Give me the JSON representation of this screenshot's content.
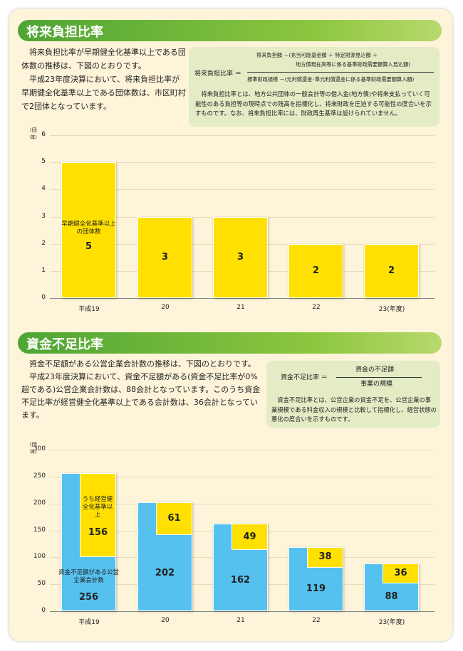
{
  "section1": {
    "title": "将来負担比率",
    "paragraphs": [
      "将来負担比率が早期健全化基準以上である団体数の推移は、下図のとおりです。",
      "平成23年度決算において、将来負担比率が早期健全化基準以上である団体数は、市区町村で2団体となっています。"
    ],
    "formula": {
      "lhs": "将来負担比率 ＝",
      "num1": "将来負担額 －(充当可能基金額 ＋ 特定財源見込額 ＋",
      "num2": "地方債現在高等に係る基準財政需要額算入見込額)",
      "den": "標準財政規模 －(元利償還金･準元利償還金に係る基準財政需要額算入額)"
    },
    "note": "将来負担比率とは、地方公共団体の一般会計等の借入金(地方債)や将来支払っていく可能性のある負担等の現時点での残高を指標化し、将来財政を圧迫する可能性の度合いを示すものです。なお、将来負担比率には、財政再生基準は設けられていません。"
  },
  "section2": {
    "title": "資金不足比率",
    "paragraphs": [
      "資金不足額がある公営企業会計数の推移は、下図のとおりです。",
      "平成23年度決算において、資金不足額がある(資金不足比率が0%超である)公営企業会計数は、88会計となっています。このうち資金不足比率が経営健全化基準以上である会計数は、36会計となっています。"
    ],
    "formula": {
      "lhs": "資金不足比率 ＝",
      "num": "資金の不足額",
      "den": "事業の規模"
    },
    "note": "資金不足比率とは、公営企業の資金不足を、公営企業の事業規模である料金収入の規模と比較して指標化し、経営状態の悪化の度合いを示すものです。"
  },
  "chart_data": [
    {
      "type": "bar",
      "ylabel": "(団体)",
      "ylim": [
        0,
        6
      ],
      "yticks": [
        "0",
        "1",
        "2",
        "3",
        "4",
        "5",
        "6"
      ],
      "categories": [
        "平成19",
        "20",
        "21",
        "22",
        "23(年度)"
      ],
      "values": [
        5,
        3,
        3,
        2,
        2
      ],
      "value_labels": [
        "5",
        "3",
        "3",
        "2",
        "2"
      ],
      "annotation": "早期健全化基準以上の団体数",
      "color": "#ffe000"
    },
    {
      "type": "bar",
      "ylabel": "(団体)",
      "ylim": [
        0,
        300
      ],
      "yticks": [
        "0",
        "50",
        "100",
        "150",
        "200",
        "250",
        "300"
      ],
      "categories": [
        "平成19",
        "20",
        "21",
        "22",
        "23(年度)"
      ],
      "series": [
        {
          "name": "資金不足額がある公営企業会計数",
          "values": [
            256,
            202,
            162,
            119,
            88
          ],
          "labels": [
            "256",
            "202",
            "162",
            "119",
            "88"
          ],
          "color": "#55c1ef"
        },
        {
          "name": "うち経営健全化基準以上",
          "values": [
            156,
            61,
            49,
            38,
            36
          ],
          "labels": [
            "156",
            "61",
            "49",
            "38",
            "36"
          ],
          "color": "#ffe000"
        }
      ],
      "annotations": [
        "資金不足額がある公営企業会計数",
        "うち経営健全化基準以上"
      ]
    }
  ]
}
